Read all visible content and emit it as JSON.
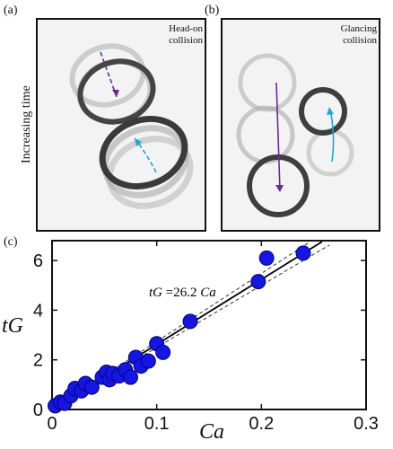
{
  "panels": {
    "a": {
      "tag": "(a)",
      "caption_line1": "Head-on",
      "caption_line2": "collision"
    },
    "b": {
      "tag": "(b)",
      "caption_line1": "Glancing",
      "caption_line2": "collision"
    },
    "c": {
      "tag": "(c)"
    },
    "side_label": "Increasing time"
  },
  "chart_data": {
    "type": "scatter",
    "xlabel": "Ca",
    "ylabel": "tG",
    "xlim": [
      0,
      0.3
    ],
    "ylim": [
      0,
      6.8
    ],
    "xticks": [
      "0",
      "0.1",
      "0.2",
      "0.3"
    ],
    "yticks": [
      "0",
      "2",
      "4",
      "6"
    ],
    "fit_label_prefix": "tG",
    "fit_label_text": " =26.2 ",
    "fit_label_suffix": "Ca",
    "fit_slope": 26.2,
    "band_slopes": [
      25.0,
      27.4
    ],
    "colors": {
      "marker": "#1515e6",
      "marker_edge": "#05056e",
      "fit": "#000000"
    },
    "points": [
      [
        0.003,
        0.15
      ],
      [
        0.008,
        0.3
      ],
      [
        0.012,
        0.25
      ],
      [
        0.018,
        0.55
      ],
      [
        0.022,
        0.85
      ],
      [
        0.028,
        0.75
      ],
      [
        0.032,
        1.05
      ],
      [
        0.038,
        0.9
      ],
      [
        0.048,
        1.3
      ],
      [
        0.052,
        1.5
      ],
      [
        0.055,
        1.2
      ],
      [
        0.058,
        1.45
      ],
      [
        0.064,
        1.35
      ],
      [
        0.07,
        1.6
      ],
      [
        0.075,
        1.3
      ],
      [
        0.08,
        2.1
      ],
      [
        0.085,
        1.75
      ],
      [
        0.092,
        1.95
      ],
      [
        0.1,
        2.65
      ],
      [
        0.106,
        2.3
      ],
      [
        0.132,
        3.55
      ],
      [
        0.197,
        5.15
      ],
      [
        0.205,
        6.1
      ],
      [
        0.24,
        6.3
      ]
    ]
  }
}
